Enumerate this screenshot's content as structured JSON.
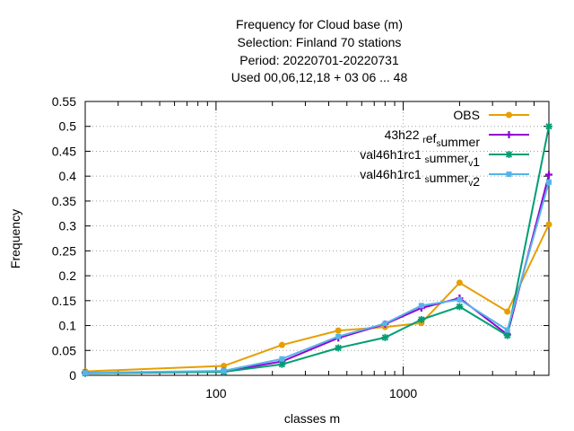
{
  "chart_data": {
    "type": "line",
    "title_lines": [
      "Frequency  for Cloud base (m)",
      "Selection: Finland     70 stations",
      "Period: 20220701-20220731",
      "Used  00,06,12,18  + 03 06 ... 48"
    ],
    "xlabel": "classes m",
    "ylabel": "Frequency",
    "x_scale": "log",
    "xlim": [
      20,
      6000
    ],
    "ylim": [
      0,
      0.55
    ],
    "x_tick_labels": [
      "100",
      "1000"
    ],
    "x_ticks": [
      100,
      1000
    ],
    "y_ticks": [
      0,
      0.05,
      0.1,
      0.15,
      0.2,
      0.25,
      0.3,
      0.35,
      0.4,
      0.45,
      0.5,
      0.55
    ],
    "y_tick_labels": [
      "0",
      "0.05",
      "0.1",
      "0.15",
      "0.2",
      "0.25",
      "0.3",
      "0.35",
      "0.4",
      "0.45",
      "0.5",
      "0.55"
    ],
    "grid": true,
    "legend_position": "top-right",
    "x": [
      20,
      110,
      225,
      450,
      800,
      1250,
      2000,
      3600,
      6000
    ],
    "series": [
      {
        "name": "OBS",
        "color": "#e69f00",
        "marker": "circle",
        "values": [
          0.008,
          0.019,
          0.061,
          0.09,
          0.097,
          0.105,
          0.186,
          0.128,
          0.303
        ]
      },
      {
        "name": "43h22 ref summer",
        "color": "#9400d3",
        "marker": "plus",
        "values": [
          0.005,
          0.008,
          0.028,
          0.075,
          0.103,
          0.135,
          0.155,
          0.082,
          0.403
        ]
      },
      {
        "name": "val46h1rc1 summer v1",
        "color": "#009e73",
        "marker": "star",
        "values": [
          0.004,
          0.007,
          0.022,
          0.055,
          0.076,
          0.112,
          0.138,
          0.08,
          0.5
        ]
      },
      {
        "name": "val46h1rc1 summer v2",
        "color": "#56b4e9",
        "marker": "square",
        "values": [
          0.005,
          0.009,
          0.033,
          0.078,
          0.104,
          0.14,
          0.152,
          0.091,
          0.388
        ]
      }
    ]
  },
  "legend": [
    {
      "parts": [
        {
          "t": "OBS"
        }
      ]
    },
    {
      "parts": [
        {
          "t": "43h22 "
        },
        {
          "t": "r",
          "sub": true
        },
        {
          "t": "ef"
        },
        {
          "t": "s",
          "sub": true
        },
        {
          "t": "ummer"
        }
      ]
    },
    {
      "parts": [
        {
          "t": "val46h1rc1 "
        },
        {
          "t": "s",
          "sub": true
        },
        {
          "t": "ummer"
        },
        {
          "t": "v",
          "sub": true
        },
        {
          "t": "1"
        }
      ]
    },
    {
      "parts": [
        {
          "t": "val46h1rc1 "
        },
        {
          "t": "s",
          "sub": true
        },
        {
          "t": "ummer"
        },
        {
          "t": "v",
          "sub": true
        },
        {
          "t": "2"
        }
      ]
    }
  ]
}
